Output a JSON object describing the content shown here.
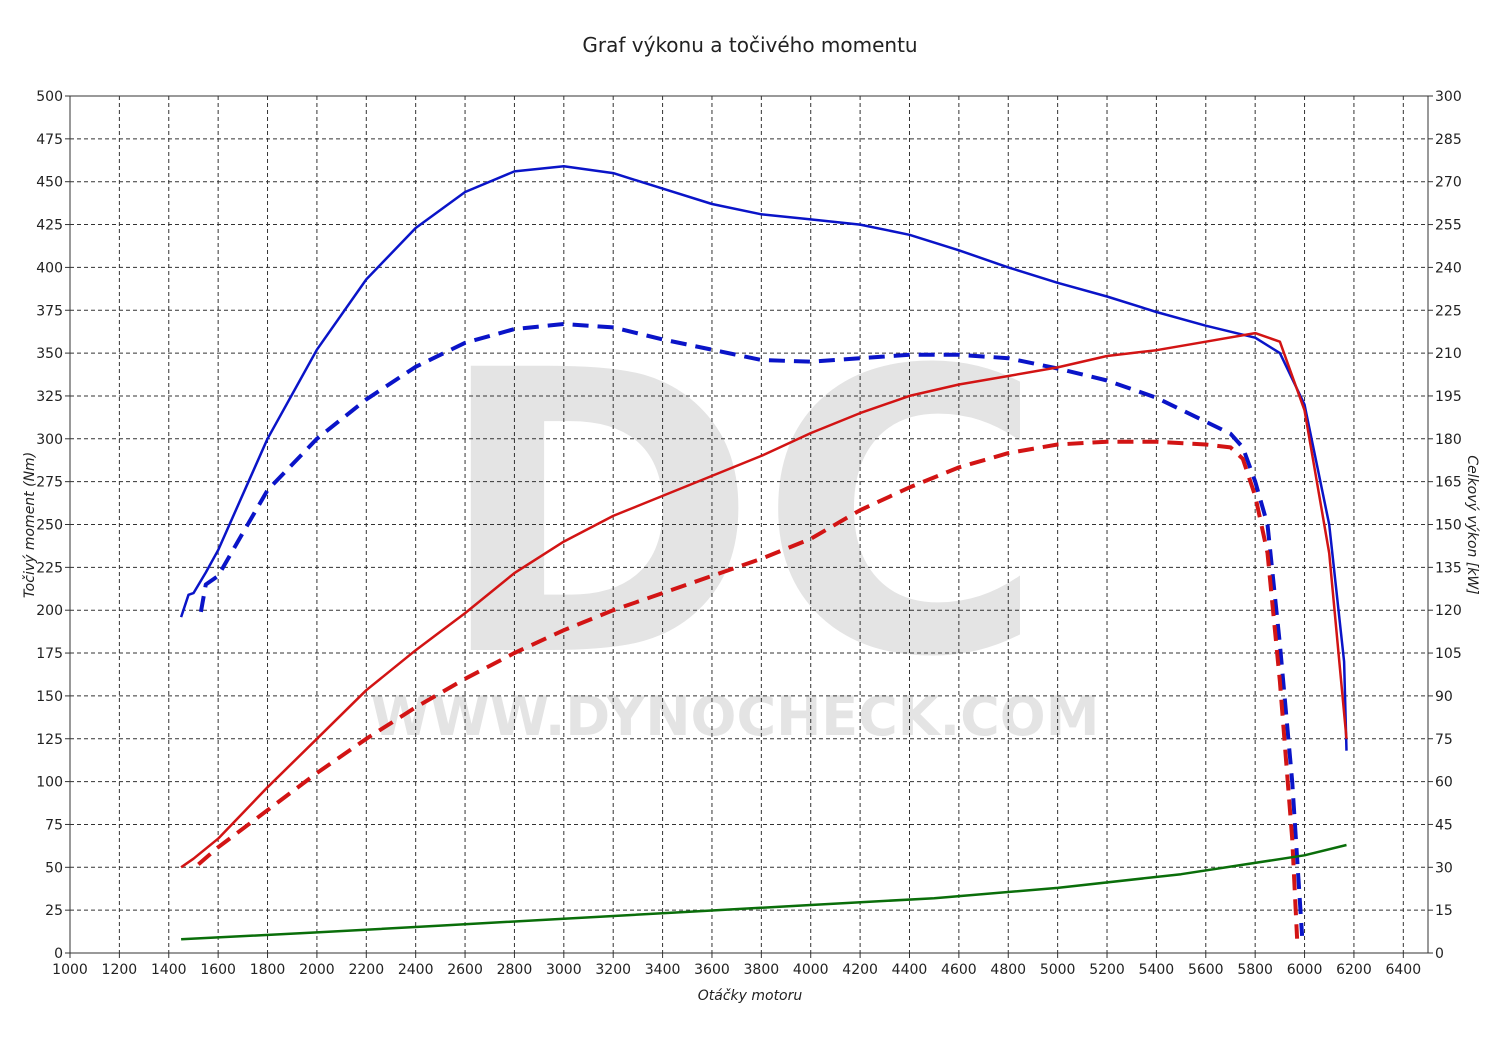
{
  "chart_data": {
    "type": "line",
    "title": "Graf výkonu a točivého momentu",
    "x_label": "Otáčky motoru",
    "y_label": "Točivý moment (Nm)",
    "y2_label": "Celkový výkon [kW]",
    "watermark": "DC",
    "watermark_url": "WWW.DYNOCHECK.COM",
    "xlim": [
      1000,
      6500
    ],
    "xticks": [
      1000,
      1200,
      1400,
      1600,
      1800,
      2000,
      2200,
      2400,
      2600,
      2800,
      3000,
      3200,
      3400,
      3600,
      3800,
      4000,
      4200,
      4400,
      4600,
      4800,
      5000,
      5200,
      5400,
      5600,
      5800,
      6000,
      6200,
      6400
    ],
    "ylim": [
      0,
      500
    ],
    "yticks": [
      0,
      25,
      50,
      75,
      100,
      125,
      150,
      175,
      200,
      225,
      250,
      275,
      300,
      325,
      350,
      375,
      400,
      425,
      450,
      475,
      500
    ],
    "y2lim": [
      0,
      300
    ],
    "y2ticks": [
      0,
      15,
      30,
      45,
      60,
      75,
      90,
      105,
      120,
      135,
      150,
      165,
      180,
      195,
      210,
      225,
      240,
      255,
      270,
      285,
      300
    ],
    "grid": true,
    "series": [
      {
        "color": "#0a14c8",
        "dashed": false,
        "x": [
          1450,
          1480,
          1500,
          1550,
          1600,
          1800,
          2000,
          2200,
          2400,
          2600,
          2800,
          3000,
          3200,
          3400,
          3600,
          3800,
          4000,
          4200,
          4400,
          4600,
          4800,
          5000,
          5200,
          5400,
          5600,
          5800,
          5900,
          6000,
          6100,
          6160,
          6170
        ],
        "values": [
          196,
          209,
          210,
          222,
          235,
          300,
          352,
          393,
          423,
          444,
          456,
          459,
          455,
          446,
          437,
          431,
          428,
          425,
          419,
          410,
          400,
          391,
          383,
          374,
          366,
          359,
          350,
          320,
          250,
          170,
          118
        ]
      },
      {
        "color": "#0a14c8",
        "dashed": true,
        "x": [
          1530,
          1550,
          1600,
          1800,
          2000,
          2200,
          2400,
          2600,
          2800,
          3000,
          3200,
          3400,
          3600,
          3800,
          4000,
          4200,
          4400,
          4600,
          4800,
          5000,
          5200,
          5400,
          5600,
          5700,
          5750,
          5800,
          5850,
          5900,
          5950,
          5990
        ],
        "values": [
          199,
          215,
          220,
          270,
          300,
          323,
          342,
          356,
          364,
          367,
          365,
          358,
          352,
          346,
          345,
          347,
          349,
          349,
          347,
          341,
          334,
          324,
          310,
          303,
          295,
          275,
          250,
          180,
          100,
          10
        ]
      },
      {
        "color": "#d21414",
        "dashed": false,
        "axis": "y2",
        "x": [
          1450,
          1500,
          1600,
          1800,
          2000,
          2200,
          2400,
          2600,
          2800,
          3000,
          3200,
          3400,
          3600,
          3800,
          4000,
          4200,
          4400,
          4600,
          4800,
          5000,
          5200,
          5400,
          5600,
          5800,
          5900,
          6000,
          6100,
          6170
        ],
        "values": [
          30,
          33,
          40,
          58,
          75,
          92,
          106,
          119,
          133,
          144,
          153,
          160,
          167,
          174,
          182,
          189,
          195,
          199,
          202,
          205,
          209,
          211,
          214,
          217,
          214,
          190,
          140,
          75
        ]
      },
      {
        "color": "#d21414",
        "dashed": true,
        "axis": "y2",
        "x": [
          1520,
          1600,
          1800,
          2000,
          2200,
          2400,
          2600,
          2800,
          3000,
          3200,
          3400,
          3600,
          3800,
          4000,
          4200,
          4400,
          4600,
          4800,
          5000,
          5200,
          5400,
          5600,
          5700,
          5750,
          5800,
          5850,
          5900,
          5950,
          5970
        ],
        "values": [
          31,
          37,
          50,
          63,
          75,
          86,
          96,
          105,
          113,
          120,
          126,
          132,
          138,
          145,
          155,
          163,
          170,
          175,
          178,
          179,
          179,
          178,
          177,
          173,
          160,
          140,
          95,
          40,
          5
        ]
      },
      {
        "color": "#0a6e0a",
        "dashed": false,
        "x": [
          1450,
          2000,
          2500,
          3000,
          3500,
          4000,
          4500,
          5000,
          5500,
          6000,
          6170
        ],
        "values": [
          8,
          12,
          16,
          20,
          24,
          28,
          32,
          38,
          46,
          57,
          63
        ]
      }
    ]
  }
}
